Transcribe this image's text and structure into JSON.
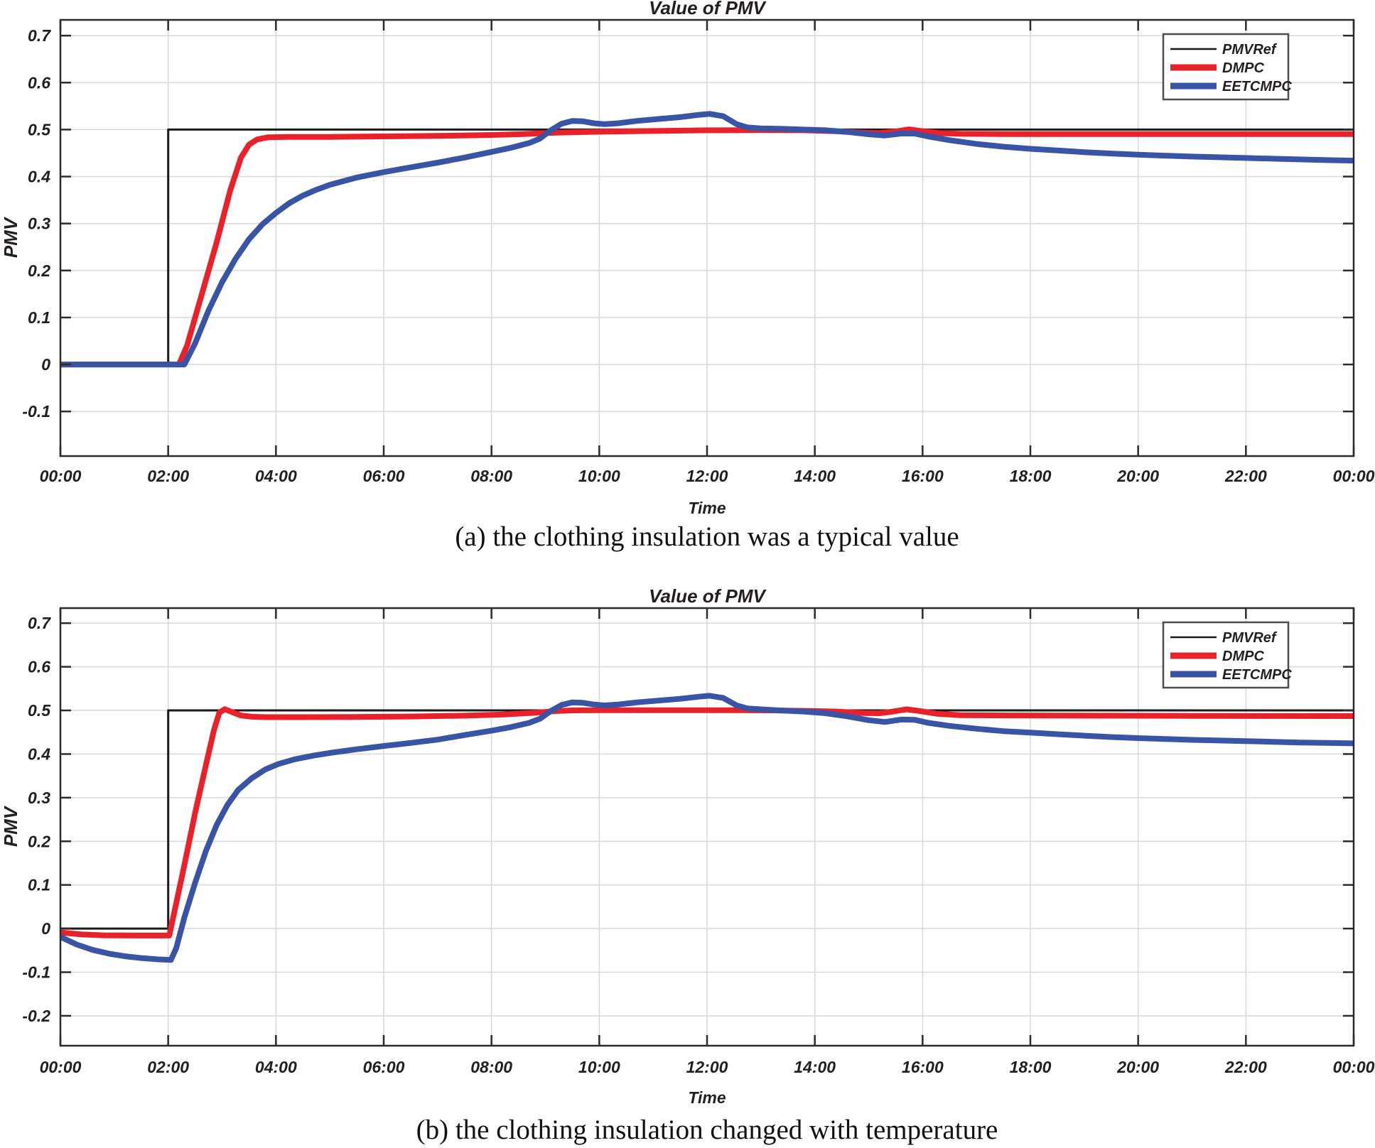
{
  "figure": {
    "captions": {
      "a": "(a) the clothing insulation was a typical value",
      "b": "(b) the clothing insulation changed with temperature"
    }
  },
  "colors": {
    "pmvref": "#1a1a1a",
    "dmpc": "#e8212b",
    "eetcmpc": "#3a54a5",
    "grid": "#dadada",
    "axis": "#2b2b2b",
    "text": "#231f20",
    "legend_border": "#4d4d4d",
    "background": "#ffffff"
  },
  "chart_data": [
    {
      "id": "a",
      "type": "line",
      "title": "Value of PMV",
      "xlabel": "Time",
      "ylabel": "PMV",
      "xlim": [
        0,
        24
      ],
      "ylim": [
        -0.195,
        0.7335
      ],
      "grid": true,
      "legend_position": "top-right",
      "legend_entries": [
        "PMVRef",
        "DMPC",
        "EETCMPC"
      ],
      "x_tick_hours": [
        0,
        2,
        4,
        6,
        8,
        10,
        12,
        14,
        16,
        18,
        20,
        22,
        24
      ],
      "x_tick_labels": [
        "00:00",
        "02:00",
        "04:00",
        "06:00",
        "08:00",
        "10:00",
        "12:00",
        "14:00",
        "16:00",
        "18:00",
        "20:00",
        "22:00",
        "00:00"
      ],
      "y_tick_values": [
        0.7,
        0.6,
        0.5,
        0.4,
        0.3,
        0.2,
        0.1,
        0,
        -0.1
      ],
      "y_tick_labels": [
        "0.7",
        "0.6",
        "0.5",
        "0.4",
        "0.3",
        "0.2",
        "0.1",
        "0",
        "-0.1"
      ],
      "series": [
        {
          "name": "PMVRef",
          "color_key": "pmvref",
          "width": 3,
          "points": [
            [
              0,
              0
            ],
            [
              2,
              0
            ],
            [
              2,
              0.5
            ],
            [
              24,
              0.5
            ]
          ]
        },
        {
          "name": "DMPC",
          "color_key": "dmpc",
          "width": 8,
          "points": [
            [
              0,
              0
            ],
            [
              2.2,
              0
            ],
            [
              2.35,
              0.04
            ],
            [
              2.6,
              0.14
            ],
            [
              2.9,
              0.26
            ],
            [
              3.15,
              0.37
            ],
            [
              3.35,
              0.44
            ],
            [
              3.5,
              0.468
            ],
            [
              3.65,
              0.479
            ],
            [
              3.85,
              0.4835
            ],
            [
              4.2,
              0.4845
            ],
            [
              5,
              0.4845
            ],
            [
              6,
              0.4855
            ],
            [
              7,
              0.4865
            ],
            [
              8,
              0.4885
            ],
            [
              8.6,
              0.4905
            ],
            [
              9.2,
              0.4935
            ],
            [
              10,
              0.4955
            ],
            [
              11,
              0.497
            ],
            [
              12,
              0.4985
            ],
            [
              13,
              0.499
            ],
            [
              13.8,
              0.4985
            ],
            [
              14.4,
              0.4965
            ],
            [
              14.9,
              0.4935
            ],
            [
              15.2,
              0.4925
            ],
            [
              15.5,
              0.496
            ],
            [
              15.75,
              0.5005
            ],
            [
              16,
              0.4965
            ],
            [
              16.3,
              0.4925
            ],
            [
              16.7,
              0.491
            ],
            [
              17.5,
              0.4905
            ],
            [
              19,
              0.4905
            ],
            [
              21,
              0.4905
            ],
            [
              24,
              0.4905
            ]
          ]
        },
        {
          "name": "EETCMPC",
          "color_key": "eetcmpc",
          "width": 8,
          "points": [
            [
              0,
              0
            ],
            [
              2.3,
              0
            ],
            [
              2.5,
              0.045
            ],
            [
              2.75,
              0.115
            ],
            [
              3,
              0.175
            ],
            [
              3.25,
              0.225
            ],
            [
              3.5,
              0.2665
            ],
            [
              3.75,
              0.2985
            ],
            [
              4,
              0.3225
            ],
            [
              4.25,
              0.3435
            ],
            [
              4.5,
              0.3595
            ],
            [
              4.75,
              0.372
            ],
            [
              5,
              0.3825
            ],
            [
              5.5,
              0.398
            ],
            [
              6,
              0.4095
            ],
            [
              6.5,
              0.4195
            ],
            [
              7,
              0.4295
            ],
            [
              7.5,
              0.4405
            ],
            [
              8,
              0.4525
            ],
            [
              8.35,
              0.461
            ],
            [
              8.7,
              0.4715
            ],
            [
              8.9,
              0.481
            ],
            [
              9.1,
              0.4985
            ],
            [
              9.3,
              0.5125
            ],
            [
              9.5,
              0.5185
            ],
            [
              9.7,
              0.5175
            ],
            [
              9.9,
              0.5135
            ],
            [
              10.1,
              0.5115
            ],
            [
              10.35,
              0.5135
            ],
            [
              10.7,
              0.5185
            ],
            [
              11.1,
              0.5225
            ],
            [
              11.5,
              0.5265
            ],
            [
              11.85,
              0.5315
            ],
            [
              12.05,
              0.5335
            ],
            [
              12.3,
              0.5285
            ],
            [
              12.55,
              0.5115
            ],
            [
              12.75,
              0.5045
            ],
            [
              13,
              0.5025
            ],
            [
              13.4,
              0.5015
            ],
            [
              13.8,
              0.5
            ],
            [
              14.2,
              0.4985
            ],
            [
              14.6,
              0.495
            ],
            [
              15,
              0.49
            ],
            [
              15.3,
              0.4875
            ],
            [
              15.6,
              0.4915
            ],
            [
              15.85,
              0.4915
            ],
            [
              16.1,
              0.4855
            ],
            [
              16.5,
              0.4775
            ],
            [
              17,
              0.4695
            ],
            [
              17.5,
              0.4635
            ],
            [
              18,
              0.459
            ],
            [
              18.5,
              0.4555
            ],
            [
              19,
              0.452
            ],
            [
              19.5,
              0.449
            ],
            [
              20,
              0.4465
            ],
            [
              20.5,
              0.4445
            ],
            [
              21,
              0.4425
            ],
            [
              21.5,
              0.441
            ],
            [
              22,
              0.4395
            ],
            [
              22.5,
              0.438
            ],
            [
              23,
              0.4365
            ],
            [
              23.5,
              0.435
            ],
            [
              24,
              0.434
            ]
          ]
        }
      ]
    },
    {
      "id": "b",
      "type": "line",
      "title": "Value of PMV",
      "xlabel": "Time",
      "ylabel": "PMV",
      "xlim": [
        0,
        24
      ],
      "ylim": [
        -0.2685,
        0.7345
      ],
      "grid": true,
      "legend_position": "top-right",
      "legend_entries": [
        "PMVRef",
        "DMPC",
        "EETCMPC"
      ],
      "x_tick_hours": [
        0,
        2,
        4,
        6,
        8,
        10,
        12,
        14,
        16,
        18,
        20,
        22,
        24
      ],
      "x_tick_labels": [
        "00:00",
        "02:00",
        "04:00",
        "06:00",
        "08:00",
        "10:00",
        "12:00",
        "14:00",
        "16:00",
        "18:00",
        "20:00",
        "22:00",
        "00:00"
      ],
      "y_tick_values": [
        0.7,
        0.6,
        0.5,
        0.4,
        0.3,
        0.2,
        0.1,
        0,
        -0.1,
        -0.2
      ],
      "y_tick_labels": [
        "0.7",
        "0.6",
        "0.5",
        "0.4",
        "0.3",
        "0.2",
        "0.1",
        "0",
        "-0.1",
        "-0.2"
      ],
      "series": [
        {
          "name": "PMVRef",
          "color_key": "pmvref",
          "width": 3,
          "points": [
            [
              0,
              0
            ],
            [
              2,
              0
            ],
            [
              2,
              0.5
            ],
            [
              24,
              0.5
            ]
          ]
        },
        {
          "name": "DMPC",
          "color_key": "dmpc",
          "width": 8,
          "points": [
            [
              0,
              -0.009
            ],
            [
              0.4,
              -0.0135
            ],
            [
              0.8,
              -0.0155
            ],
            [
              1.4,
              -0.016
            ],
            [
              2.02,
              -0.016
            ],
            [
              2.1,
              0.03
            ],
            [
              2.3,
              0.145
            ],
            [
              2.5,
              0.265
            ],
            [
              2.7,
              0.375
            ],
            [
              2.85,
              0.455
            ],
            [
              2.95,
              0.495
            ],
            [
              3.05,
              0.503
            ],
            [
              3.2,
              0.4955
            ],
            [
              3.35,
              0.4885
            ],
            [
              3.55,
              0.4855
            ],
            [
              3.8,
              0.4845
            ],
            [
              4.5,
              0.4845
            ],
            [
              5.5,
              0.485
            ],
            [
              6.5,
              0.486
            ],
            [
              7.5,
              0.488
            ],
            [
              8.2,
              0.4905
            ],
            [
              8.8,
              0.4945
            ],
            [
              9.2,
              0.4985
            ],
            [
              9.5,
              0.5
            ],
            [
              10,
              0.5005
            ],
            [
              11,
              0.5005
            ],
            [
              12,
              0.5005
            ],
            [
              12.6,
              0.5005
            ],
            [
              13.2,
              0.5
            ],
            [
              13.8,
              0.499
            ],
            [
              14.4,
              0.4975
            ],
            [
              14.9,
              0.494
            ],
            [
              15.2,
              0.4935
            ],
            [
              15.45,
              0.4975
            ],
            [
              15.7,
              0.5025
            ],
            [
              15.95,
              0.4985
            ],
            [
              16.25,
              0.4925
            ],
            [
              16.7,
              0.489
            ],
            [
              17.5,
              0.4885
            ],
            [
              19,
              0.488
            ],
            [
              21,
              0.4875
            ],
            [
              24,
              0.487
            ]
          ]
        },
        {
          "name": "EETCMPC",
          "color_key": "eetcmpc",
          "width": 8,
          "points": [
            [
              0,
              -0.019
            ],
            [
              0.3,
              -0.0365
            ],
            [
              0.6,
              -0.049
            ],
            [
              0.9,
              -0.0575
            ],
            [
              1.2,
              -0.0635
            ],
            [
              1.5,
              -0.0675
            ],
            [
              1.8,
              -0.0705
            ],
            [
              2.05,
              -0.072
            ],
            [
              2.15,
              -0.045
            ],
            [
              2.3,
              0.025
            ],
            [
              2.5,
              0.105
            ],
            [
              2.7,
              0.178
            ],
            [
              2.9,
              0.2375
            ],
            [
              3.1,
              0.2835
            ],
            [
              3.3,
              0.318
            ],
            [
              3.55,
              0.3445
            ],
            [
              3.8,
              0.3645
            ],
            [
              4.05,
              0.3775
            ],
            [
              4.35,
              0.388
            ],
            [
              4.7,
              0.3965
            ],
            [
              5,
              0.4025
            ],
            [
              5.5,
              0.411
            ],
            [
              6,
              0.4185
            ],
            [
              6.5,
              0.4255
            ],
            [
              7,
              0.433
            ],
            [
              7.5,
              0.4435
            ],
            [
              8,
              0.4535
            ],
            [
              8.35,
              0.4615
            ],
            [
              8.7,
              0.4715
            ],
            [
              8.9,
              0.481
            ],
            [
              9.1,
              0.4985
            ],
            [
              9.3,
              0.5125
            ],
            [
              9.5,
              0.5185
            ],
            [
              9.7,
              0.5175
            ],
            [
              9.9,
              0.5135
            ],
            [
              10.1,
              0.5115
            ],
            [
              10.35,
              0.5135
            ],
            [
              10.7,
              0.5185
            ],
            [
              11.1,
              0.5225
            ],
            [
              11.5,
              0.5265
            ],
            [
              11.85,
              0.5315
            ],
            [
              12.05,
              0.5335
            ],
            [
              12.3,
              0.5285
            ],
            [
              12.55,
              0.5115
            ],
            [
              12.75,
              0.5045
            ],
            [
              13,
              0.5025
            ],
            [
              13.4,
              0.4995
            ],
            [
              13.8,
              0.4975
            ],
            [
              14.2,
              0.4935
            ],
            [
              14.6,
              0.4865
            ],
            [
              15,
              0.4775
            ],
            [
              15.3,
              0.4735
            ],
            [
              15.6,
              0.479
            ],
            [
              15.85,
              0.4785
            ],
            [
              16.1,
              0.4715
            ],
            [
              16.5,
              0.4645
            ],
            [
              17,
              0.458
            ],
            [
              17.5,
              0.4525
            ],
            [
              18,
              0.449
            ],
            [
              18.5,
              0.4455
            ],
            [
              19,
              0.442
            ],
            [
              19.5,
              0.439
            ],
            [
              20,
              0.4365
            ],
            [
              20.5,
              0.4345
            ],
            [
              21,
              0.4325
            ],
            [
              21.5,
              0.431
            ],
            [
              22,
              0.4295
            ],
            [
              22.5,
              0.428
            ],
            [
              23,
              0.4265
            ],
            [
              23.5,
              0.4255
            ],
            [
              24,
              0.4245
            ]
          ]
        }
      ]
    }
  ]
}
